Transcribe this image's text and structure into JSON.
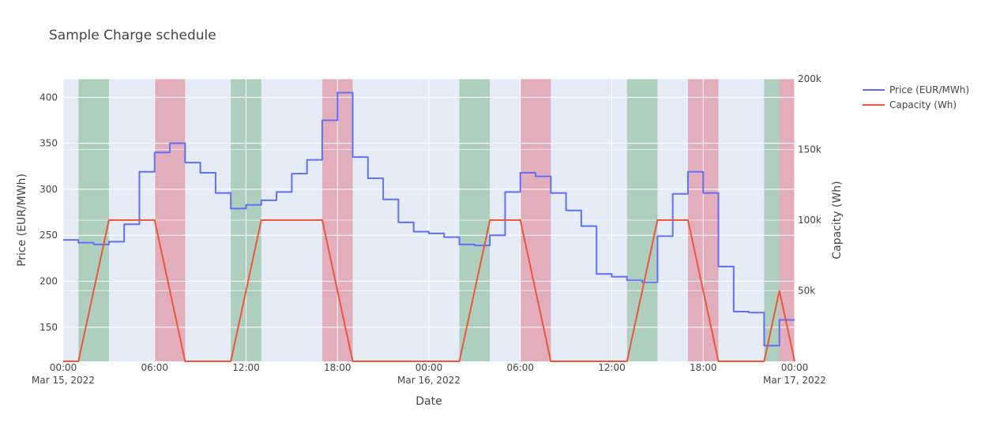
{
  "chart_data": {
    "type": "line",
    "title": "Sample Charge schedule",
    "xlabel": "Date",
    "ylabel": "Price (EUR/MWh)",
    "y2label": "Capacity (Wh)",
    "x_range_hours": [
      0,
      48
    ],
    "ylim": [
      113,
      420
    ],
    "y2lim": [
      0,
      200000
    ],
    "x_ticks": [
      {
        "hour": 0,
        "label": "00:00",
        "sub": "Mar 15, 2022"
      },
      {
        "hour": 6,
        "label": "06:00",
        "sub": ""
      },
      {
        "hour": 12,
        "label": "12:00",
        "sub": ""
      },
      {
        "hour": 18,
        "label": "18:00",
        "sub": ""
      },
      {
        "hour": 24,
        "label": "00:00",
        "sub": "Mar 16, 2022"
      },
      {
        "hour": 30,
        "label": "06:00",
        "sub": ""
      },
      {
        "hour": 36,
        "label": "12:00",
        "sub": ""
      },
      {
        "hour": 42,
        "label": "18:00",
        "sub": ""
      },
      {
        "hour": 48,
        "label": "00:00",
        "sub": "Mar 17, 2022"
      }
    ],
    "y_ticks": [
      150,
      200,
      250,
      300,
      350,
      400
    ],
    "y2_ticks": [
      {
        "value": 50000,
        "label": "50k"
      },
      {
        "value": 100000,
        "label": "100k"
      },
      {
        "value": 150000,
        "label": "150k"
      },
      {
        "value": 200000,
        "label": "200k"
      }
    ],
    "grid": true,
    "legend_placement": "top-right",
    "series": [
      {
        "name": "Price (EUR/MWh)",
        "color": "#636efa",
        "shape": "step",
        "x": [
          0,
          1,
          2,
          3,
          4,
          5,
          6,
          7,
          8,
          9,
          10,
          11,
          12,
          13,
          14,
          15,
          16,
          17,
          18,
          19,
          20,
          21,
          22,
          23,
          24,
          25,
          26,
          27,
          28,
          29,
          30,
          31,
          32,
          33,
          34,
          35,
          36,
          37,
          38,
          39,
          40,
          41,
          42,
          43,
          44,
          45,
          46,
          47,
          48
        ],
        "values": [
          245,
          242,
          240,
          243,
          262,
          319,
          340,
          350,
          329,
          318,
          296,
          279,
          283,
          288,
          297,
          317,
          332,
          375,
          405,
          335,
          312,
          289,
          264,
          254,
          252,
          248,
          240,
          239,
          250,
          297,
          318,
          314,
          296,
          277,
          260,
          208,
          205,
          201,
          199,
          249,
          295,
          319,
          296,
          216,
          167,
          166,
          130,
          158,
          158
        ]
      },
      {
        "name": "Capacity (Wh)",
        "color": "#ef553b",
        "shape": "linear",
        "x": [
          0,
          1,
          3,
          6,
          8,
          11,
          13,
          17,
          19,
          26,
          28,
          30,
          32,
          37,
          39,
          41,
          43,
          46,
          47,
          48
        ],
        "values": [
          0,
          0,
          100000,
          100000,
          0,
          0,
          100000,
          100000,
          0,
          0,
          100000,
          100000,
          0,
          0,
          100000,
          100000,
          0,
          0,
          50000,
          0
        ]
      }
    ],
    "bands": [
      {
        "start": 1,
        "end": 3,
        "type": "charge",
        "color": "#2e8b3c"
      },
      {
        "start": 6,
        "end": 8,
        "type": "discharge",
        "color": "#dc1e32"
      },
      {
        "start": 11,
        "end": 13,
        "type": "charge",
        "color": "#2e8b3c"
      },
      {
        "start": 17,
        "end": 19,
        "type": "discharge",
        "color": "#dc1e32"
      },
      {
        "start": 26,
        "end": 28,
        "type": "charge",
        "color": "#2e8b3c"
      },
      {
        "start": 30,
        "end": 32,
        "type": "discharge",
        "color": "#dc1e32"
      },
      {
        "start": 37,
        "end": 39,
        "type": "charge",
        "color": "#2e8b3c"
      },
      {
        "start": 41,
        "end": 43,
        "type": "discharge",
        "color": "#dc1e32"
      },
      {
        "start": 46,
        "end": 47,
        "type": "charge",
        "color": "#2e8b3c"
      },
      {
        "start": 47,
        "end": 48,
        "type": "discharge",
        "color": "#dc1e32"
      }
    ]
  }
}
